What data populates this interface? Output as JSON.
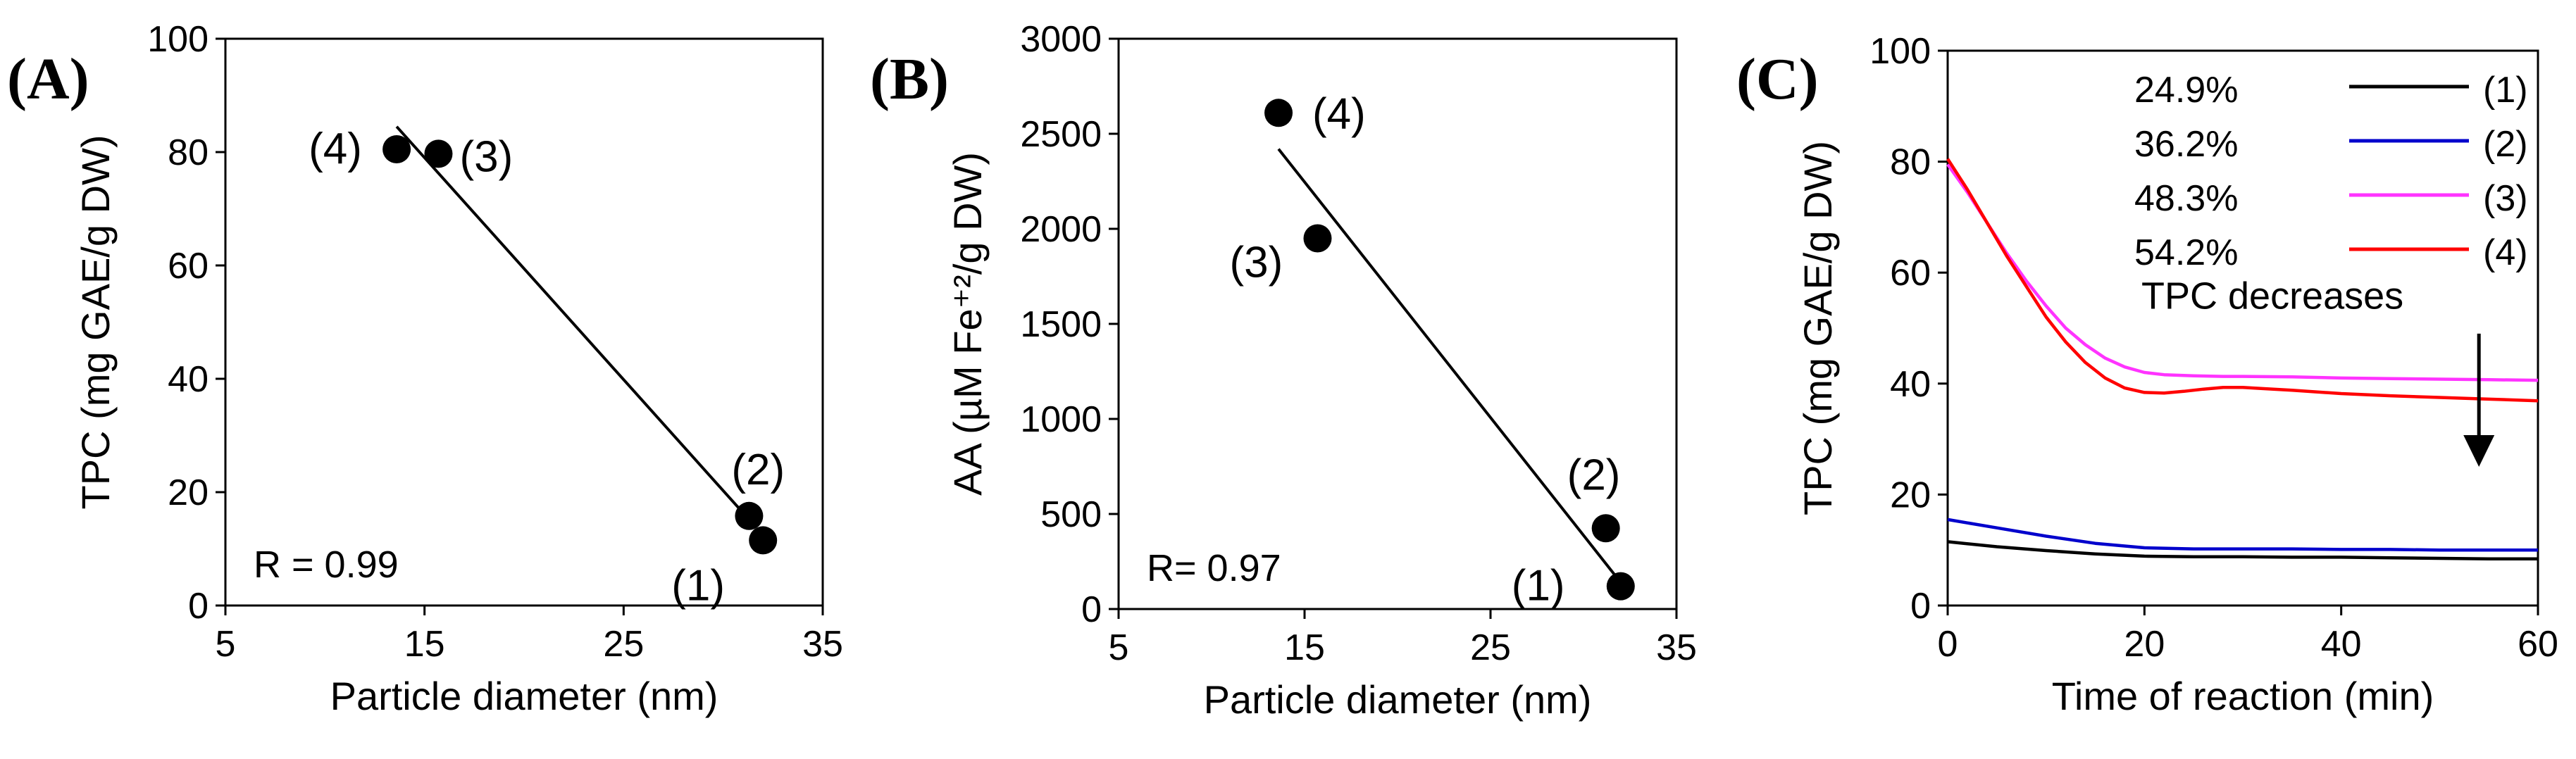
{
  "chart_data": [
    {
      "panel": "(A)",
      "type": "scatter",
      "xlabel": "Particle diameter (nm)",
      "ylabel": "TPC (mg GAE/g DW)",
      "xlim": [
        5,
        35
      ],
      "ylim": [
        0,
        100
      ],
      "xticks": [
        "5",
        "15",
        "25",
        "35"
      ],
      "yticks": [
        "0",
        "20",
        "40",
        "60",
        "80",
        "100"
      ],
      "points": [
        {
          "x": 32.0,
          "y": 11.5,
          "label": "(1)"
        },
        {
          "x": 31.3,
          "y": 15.8,
          "label": "(2)"
        },
        {
          "x": 15.7,
          "y": 79.7,
          "label": "(3)"
        },
        {
          "x": 13.6,
          "y": 80.5,
          "label": "(4)"
        }
      ],
      "fit": {
        "x": [
          13.6,
          31.6
        ],
        "y": [
          84.5,
          14.0
        ]
      },
      "annotation": "R = 0.99"
    },
    {
      "panel": "(B)",
      "type": "scatter",
      "xlabel": "Particle diameter (nm)",
      "ylabel": "AA (µM Fe⁺²/g DW)",
      "xlim": [
        5,
        35
      ],
      "ylim": [
        0,
        3000
      ],
      "xticks": [
        "5",
        "15",
        "25",
        "35"
      ],
      "yticks": [
        "0",
        "500",
        "1000",
        "1500",
        "2000",
        "2500",
        "3000"
      ],
      "points": [
        {
          "x": 32.0,
          "y": 120,
          "label": "(1)"
        },
        {
          "x": 31.2,
          "y": 425,
          "label": "(2)"
        },
        {
          "x": 15.7,
          "y": 1950,
          "label": "(3)"
        },
        {
          "x": 13.6,
          "y": 2610,
          "label": "(4)"
        }
      ],
      "fit": {
        "x": [
          13.6,
          32.0
        ],
        "y": [
          2420,
          140
        ]
      },
      "annotation": "R= 0.97"
    },
    {
      "panel": "(C)",
      "type": "line",
      "xlabel": "Time of reaction (min)",
      "ylabel": "TPC (mg GAE/g DW)",
      "xlim": [
        0,
        60
      ],
      "ylim": [
        0,
        100
      ],
      "xticks": [
        "0",
        "20",
        "40",
        "60"
      ],
      "yticks": [
        "0",
        "20",
        "40",
        "60",
        "80",
        "100"
      ],
      "legend_position": "top-right",
      "series": [
        {
          "name": "(1)",
          "pct": "24.9%",
          "color": "#000000",
          "x": [
            0,
            5,
            10,
            15,
            20,
            25,
            30,
            35,
            40,
            45,
            50,
            55,
            60
          ],
          "y": [
            11.5,
            10.6,
            9.9,
            9.3,
            8.9,
            8.8,
            8.8,
            8.7,
            8.7,
            8.6,
            8.5,
            8.4,
            8.4
          ]
        },
        {
          "name": "(2)",
          "pct": "36.2%",
          "color": "#0000cc",
          "x": [
            0,
            5,
            10,
            15,
            20,
            25,
            30,
            35,
            40,
            45,
            50,
            55,
            60
          ],
          "y": [
            15.5,
            14.0,
            12.5,
            11.2,
            10.4,
            10.2,
            10.2,
            10.2,
            10.1,
            10.1,
            10.0,
            10.0,
            10.0
          ]
        },
        {
          "name": "(3)",
          "pct": "48.3%",
          "color": "#ff33ff",
          "x": [
            0,
            2,
            4,
            6,
            8,
            10,
            12,
            14,
            16,
            18,
            20,
            22,
            25,
            28,
            30,
            35,
            40,
            45,
            50,
            55,
            60
          ],
          "y": [
            79.5,
            74.5,
            69.0,
            63.5,
            58.5,
            54.0,
            50.0,
            47.0,
            44.6,
            43.0,
            42.0,
            41.6,
            41.4,
            41.3,
            41.3,
            41.2,
            41.0,
            40.9,
            40.8,
            40.7,
            40.6
          ]
        },
        {
          "name": "(4)",
          "pct": "54.2%",
          "color": "#ff0000",
          "x": [
            0,
            2,
            4,
            6,
            8,
            10,
            12,
            14,
            16,
            18,
            20,
            22,
            24,
            26,
            28,
            30,
            32,
            35,
            40,
            45,
            50,
            55,
            60
          ],
          "y": [
            80.5,
            75.0,
            69.0,
            63.0,
            57.5,
            52.0,
            47.5,
            43.8,
            41.0,
            39.2,
            38.4,
            38.3,
            38.6,
            39.0,
            39.3,
            39.3,
            39.1,
            38.8,
            38.2,
            37.8,
            37.5,
            37.2,
            36.9
          ]
        }
      ],
      "annotation": "TPC decreases",
      "arrow": {
        "x": 54,
        "y_from": 49,
        "y_to": 25
      }
    }
  ]
}
